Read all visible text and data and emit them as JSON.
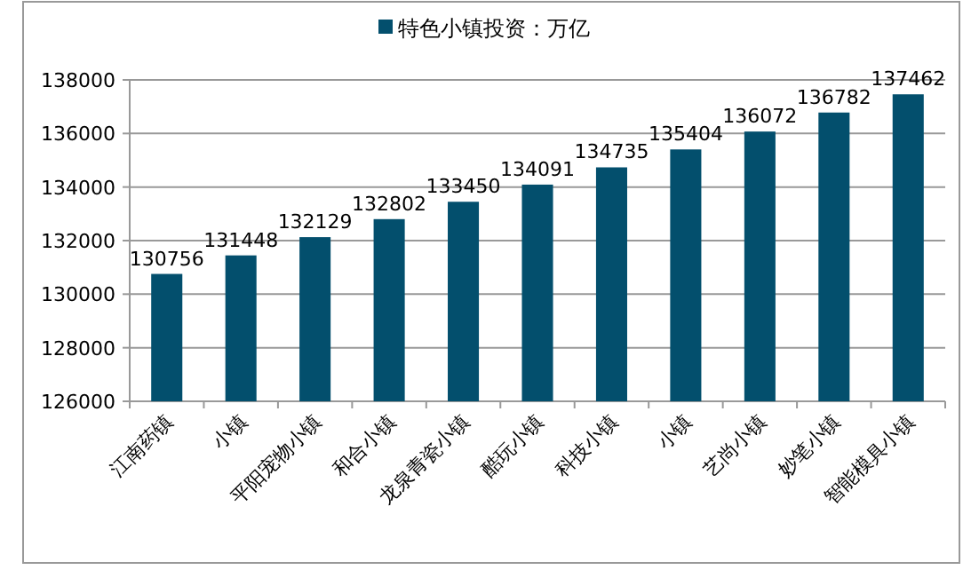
{
  "chart_data": {
    "type": "bar",
    "categories": [
      "江南药镇",
      "小镇",
      "平阳宠物小镇",
      "和合小镇",
      "龙泉青瓷小镇",
      "酷玩小镇",
      "科技小镇",
      "小镇",
      "艺尚小镇",
      "妙笔小镇",
      "智能模具小镇"
    ],
    "series": [
      {
        "name": "特色小镇投资：万亿",
        "color": "#034f6d",
        "values": [
          130756,
          131448,
          132129,
          132802,
          133450,
          134091,
          134735,
          135404,
          136072,
          136782,
          137462
        ]
      }
    ],
    "ylim": [
      126000,
      138000
    ],
    "yticks": [
      126000,
      128000,
      130000,
      132000,
      134000,
      136000,
      138000
    ],
    "grid": "y",
    "legend": "top",
    "data_labels": true
  }
}
